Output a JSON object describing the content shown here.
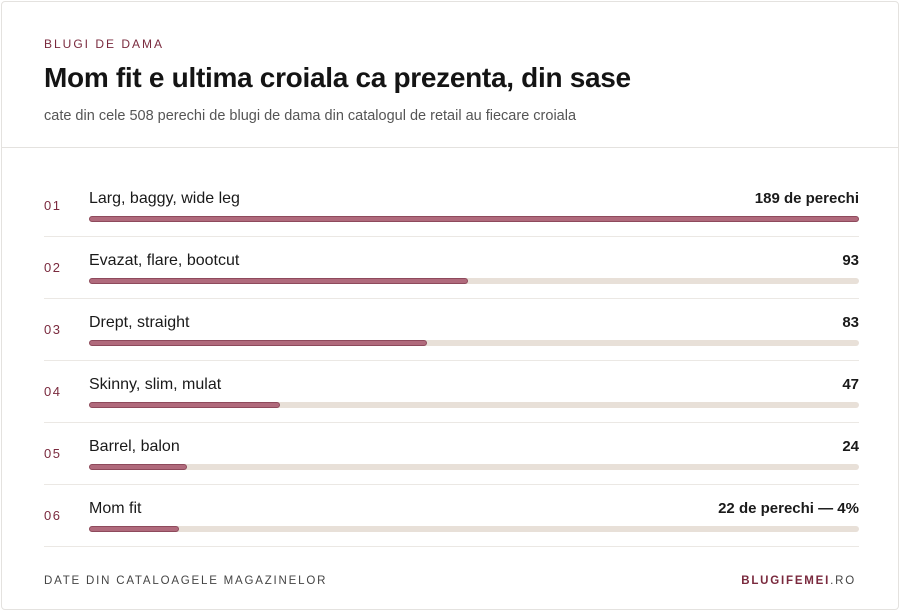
{
  "header": {
    "kicker": "BLUGI DE DAMA",
    "title": "Mom fit e ultima croiala ca prezenta, din sase",
    "subtitle": "cate din cele 508 perechi de blugi de dama din catalogul de retail au fiecare croiala"
  },
  "colors": {
    "accent": "#7a2a3e",
    "bar_fill": "#b06a7c",
    "bar_track": "#e8e0d8"
  },
  "chart_data": {
    "type": "bar",
    "orientation": "horizontal",
    "xlim": [
      0,
      189
    ],
    "categories": [
      "Larg, baggy, wide leg",
      "Evazat, flare, bootcut",
      "Drept, straight",
      "Skinny, slim, mulat",
      "Barrel, balon",
      "Mom fit"
    ],
    "values": [
      189,
      93,
      83,
      47,
      24,
      22
    ],
    "ranks": [
      "01",
      "02",
      "03",
      "04",
      "05",
      "06"
    ],
    "value_labels": [
      "189 de perechi",
      "93",
      "83",
      "47",
      "24",
      "22 de perechi — 4%"
    ]
  },
  "footer": {
    "source": "DATE DIN CATALOAGELE MAGAZINELOR",
    "brand_bold": "BLUGIFEMEI",
    "brand_rest": ".RO"
  }
}
